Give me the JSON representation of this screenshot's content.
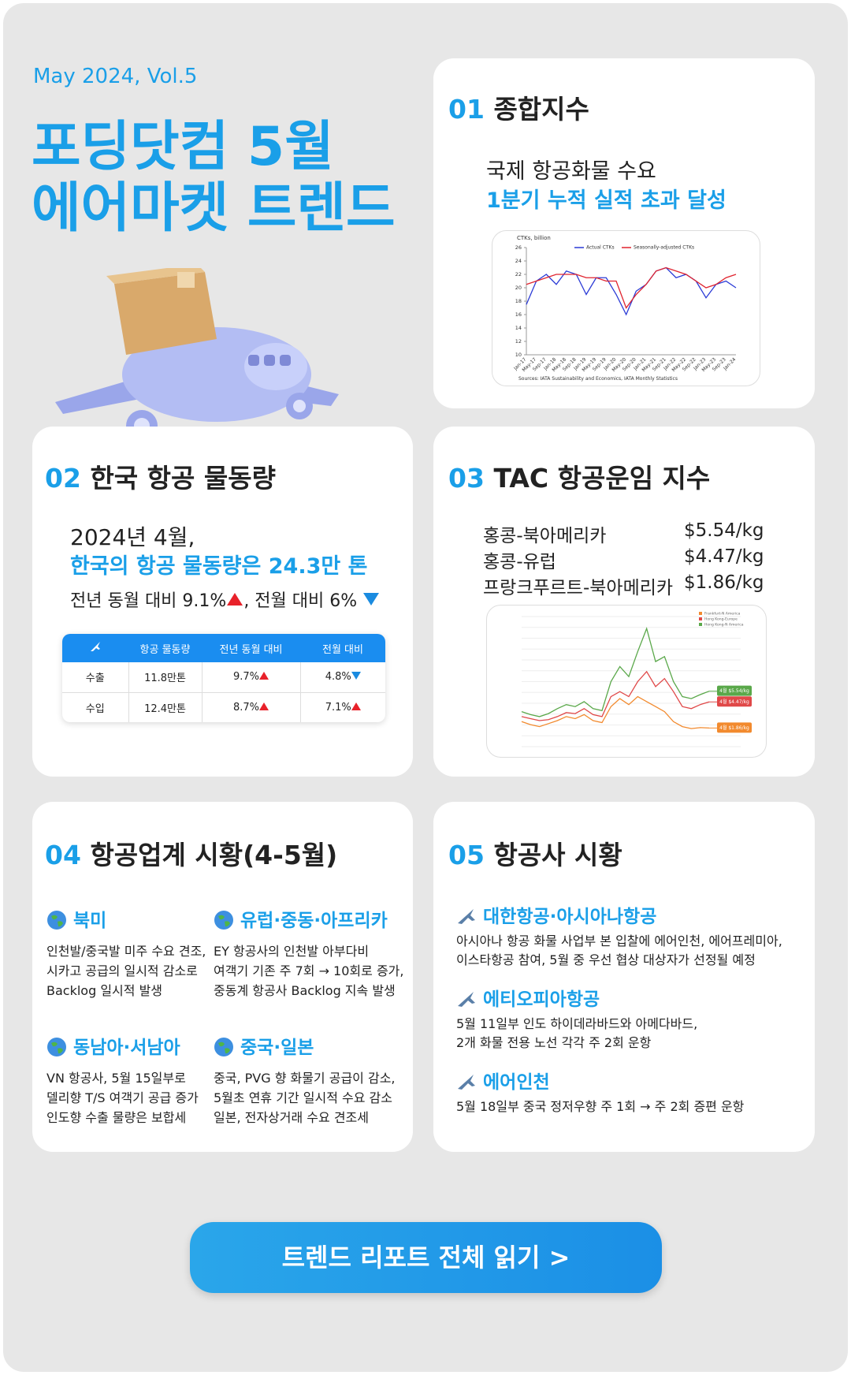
{
  "header": {
    "issue": "May 2024, Vol.5",
    "title": [
      "포딩닷컴 5월",
      "에어마켓 트렌드"
    ]
  },
  "index": {
    "number": "01",
    "title": "종합지수",
    "text": "국제 항공화물 수요",
    "highlight": "1분기 누적 실적 초과 달성",
    "chart": {
      "type": "line",
      "ylabel": "CTKs, billion",
      "source": "Sources: IATA Sustainability and Economics, IATA Monthly Statistics",
      "categories": [
        "Jan-17",
        "May-17",
        "Sep-17",
        "Jan-18",
        "May-18",
        "Sep-18",
        "Jan-19",
        "May-19",
        "Sep-19",
        "Jan-20",
        "May-20",
        "Sep-20",
        "Jan-21",
        "May-21",
        "Sep-21",
        "Jan-22",
        "May-22",
        "Sep-22",
        "Jan-23",
        "May-23",
        "Sep-23",
        "Jan-24"
      ],
      "series": [
        {
          "name": "Actual CTKs",
          "color": "#2b3bd6",
          "values": [
            17.5,
            21,
            22,
            20.5,
            22.5,
            22,
            19,
            21.5,
            21.5,
            19,
            16,
            19.5,
            20.5,
            22.5,
            23,
            21.5,
            22,
            21,
            18.5,
            20.5,
            21,
            20
          ]
        },
        {
          "name": "Seasonally-adjusted CTKs",
          "color": "#e0232e",
          "values": [
            20.5,
            21,
            21.5,
            22,
            22,
            22,
            21.5,
            21.5,
            21,
            21,
            17,
            19,
            20.5,
            22.5,
            23,
            22.5,
            22,
            21,
            20,
            20.5,
            21.5,
            22
          ]
        }
      ],
      "ylim": [
        10,
        26
      ],
      "yticks": [
        10,
        12,
        14,
        16,
        18,
        20,
        22,
        24,
        26
      ]
    }
  },
  "volume": {
    "number": "02",
    "title": "한국 항공 물동량",
    "date": "2024년 4월,",
    "highlight": "한국의 항공 물동량은 24.3만 톤",
    "yoy": "전년 동월 대비 9.1%",
    "mom": ", 전월 대비 6%",
    "table": {
      "header": [
        "항공 물동량",
        "전년 동월 대비",
        "전월 대비"
      ],
      "rows": [
        [
          "수출",
          "11.8만톤",
          "9.7%",
          "4.8%"
        ],
        [
          "수입",
          "12.4만톤",
          "8.7%",
          "7.1%"
        ]
      ]
    }
  },
  "rates": {
    "number": "03",
    "title": "TAC 항공운임 지수",
    "routes": [
      {
        "name": "홍콩-북아메리카",
        "rate": "$5.54/kg"
      },
      {
        "name": "홍콩-유럽",
        "rate": "$4.47/kg"
      },
      {
        "name": "프랑크푸르트-북아메리카",
        "rate": "$1.86/kg"
      }
    ],
    "chart": {
      "type": "line",
      "ylim": [
        0,
        13
      ],
      "series": [
        {
          "name": "Frankfurt-N America",
          "color": "#f28a2e",
          "end_label": "4월 $1.86/kg",
          "values": [
            2.5,
            2.2,
            2,
            2.3,
            2.6,
            3,
            2.8,
            3.2,
            2.6,
            2.4,
            4,
            4.8,
            4.2,
            5,
            4.5,
            4,
            3.5,
            2.5,
            2,
            1.8,
            1.9,
            1.86
          ]
        },
        {
          "name": "Hong Kong-Europe",
          "color": "#e04848",
          "end_label": "4월 $4.47/kg",
          "values": [
            3,
            2.8,
            2.6,
            2.7,
            3,
            3.4,
            3.3,
            3.8,
            3.2,
            3,
            5,
            5.5,
            5,
            6.5,
            7.5,
            6,
            6.8,
            5.5,
            4,
            3.8,
            4.2,
            4.47
          ]
        },
        {
          "name": "Hong Kong-N America",
          "color": "#5aa84a",
          "end_label": "4월 $5.54/kg",
          "values": [
            3.5,
            3.2,
            3,
            3.3,
            3.8,
            4.2,
            4,
            4.5,
            3.8,
            3.6,
            6.5,
            8,
            7,
            9.5,
            11.8,
            8.5,
            9,
            6.5,
            5,
            4.8,
            5.2,
            5.54
          ]
        }
      ]
    }
  },
  "market": {
    "number": "04",
    "title": "항공업계 시황(4-5월)",
    "regions": [
      {
        "name": "북미",
        "lines": [
          "인천발/중국발 미주 수요 견조,",
          "시카고 공급의 일시적 감소로",
          "Backlog 일시적 발생"
        ]
      },
      {
        "name": "유럽·중동·아프리카",
        "lines": [
          "EY 항공사의 인천발 아부다비",
          "여객기 기존 주 7회 → 10회로 증가,",
          "중동계 항공사 Backlog 지속 발생"
        ]
      },
      {
        "name": "동남아·서남아",
        "lines": [
          "VN 항공사, 5월 15일부로",
          "델리향 T/S 여객기 공급 증가",
          "인도향 수출 물량은 보합세"
        ]
      },
      {
        "name": "중국·일본",
        "lines": [
          "중국, PVG 향 화물기 공급이 감소,",
          "5월초 연휴 기간 일시적 수요 감소",
          "일본, 전자상거래 수요 견조세"
        ]
      }
    ]
  },
  "airlines": {
    "number": "05",
    "title": "항공사 시황",
    "items": [
      {
        "name": "대한항공·아시아나항공",
        "lines": [
          "아시아나 항공 화물 사업부 본 입찰에 에어인천, 에어프레미아,",
          "이스타항공 참여, 5월 중 우선 협상 대상자가 선정될 예정"
        ]
      },
      {
        "name": "에티오피아항공",
        "lines": [
          "5월 11일부 인도 하이데라바드와 아메다바드,",
          "2개 화물 전용 노선 각각 주 2회 운항"
        ]
      },
      {
        "name": "에어인천",
        "lines": [
          "5월 18일부 중국 정저우향 주 1회 → 주 2회 증편 운항"
        ]
      }
    ]
  },
  "button": "트렌드 리포트 전체 읽기 >"
}
